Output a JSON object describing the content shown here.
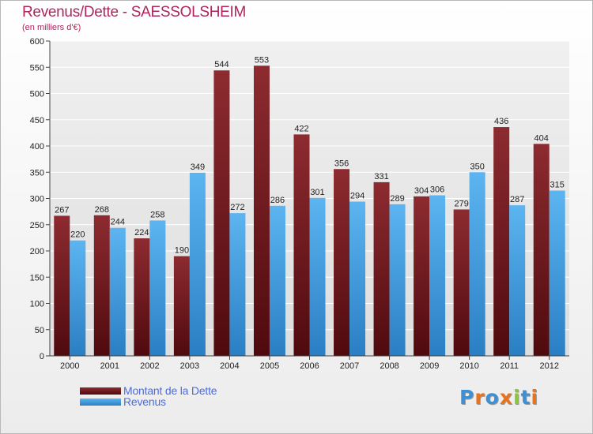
{
  "header": {
    "title": "Revenus/Dette - SAESSOLSHEIM",
    "subtitle": "(en milliers d'€)"
  },
  "colors": {
    "debt": "#7a1e24",
    "revenue": "#4fa8e8",
    "title": "#b0245c",
    "legend_text": "#4a6ce0"
  },
  "legend": {
    "items": [
      {
        "label": "Montant de la Dette",
        "color": "#7a1e24"
      },
      {
        "label": "Revenus",
        "color": "#4fa8e8"
      }
    ]
  },
  "logo": {
    "text": "Proxiti",
    "letter_colors": [
      "#3d8fd6",
      "#e8731c",
      "#3d8fd6",
      "#e8731c",
      "#8cc63f",
      "#3d8fd6",
      "#e8731c"
    ]
  },
  "chart_data": {
    "type": "bar",
    "categories": [
      "2000",
      "2001",
      "2002",
      "2003",
      "2004",
      "2005",
      "2006",
      "2007",
      "2008",
      "2009",
      "2010",
      "2011",
      "2012"
    ],
    "series": [
      {
        "name": "Montant de la Dette",
        "values": [
          267,
          268,
          224,
          190,
          544,
          553,
          422,
          356,
          331,
          304,
          279,
          436,
          404
        ]
      },
      {
        "name": "Revenus",
        "values": [
          220,
          244,
          258,
          349,
          272,
          286,
          301,
          294,
          289,
          306,
          350,
          287,
          315
        ]
      }
    ],
    "ylim": [
      0,
      600
    ],
    "yticks": [
      0,
      50,
      100,
      150,
      200,
      250,
      300,
      350,
      400,
      450,
      500,
      550,
      600
    ],
    "grid": true,
    "legend_position": "bottom-left"
  }
}
